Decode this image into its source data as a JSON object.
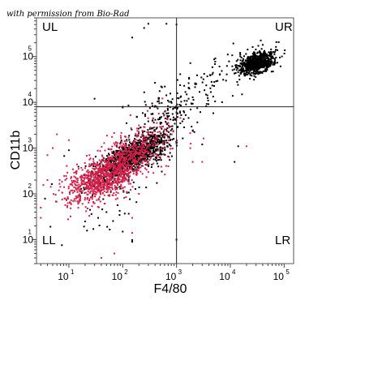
{
  "credit": "with permission from Bio-Rad",
  "chart_data": {
    "type": "scatter",
    "title": "",
    "xlabel": "F4/80",
    "ylabel": "CD11b",
    "x_scale": "log",
    "y_scale": "log",
    "xlim": [
      2.5,
      150000
    ],
    "ylim": [
      3,
      700000
    ],
    "x_ticks": [
      {
        "base": "10",
        "exp": "1",
        "value": 10
      },
      {
        "base": "10",
        "exp": "2",
        "value": 100
      },
      {
        "base": "10",
        "exp": "3",
        "value": 1000
      },
      {
        "base": "10",
        "exp": "4",
        "value": 10000
      },
      {
        "base": "10",
        "exp": "5",
        "value": 100000
      }
    ],
    "y_ticks": [
      {
        "base": "10",
        "exp": "1",
        "value": 10
      },
      {
        "base": "10",
        "exp": "2",
        "value": 100
      },
      {
        "base": "10",
        "exp": "3",
        "value": 1000
      },
      {
        "base": "10",
        "exp": "4",
        "value": 10000
      },
      {
        "base": "10",
        "exp": "5",
        "value": 100000
      }
    ],
    "gate": {
      "x": 1000,
      "y": 8000
    },
    "quadrant_labels": [
      "UL",
      "UR",
      "LL",
      "LR"
    ],
    "grid": false,
    "series": [
      {
        "color": "#000000",
        "clusters": [
          {
            "n": 700,
            "cx": 30000,
            "cy": 70000,
            "sx": 0.17,
            "sy": 0.13,
            "rho": 0.45
          },
          {
            "n": 1100,
            "cx": 160,
            "cy": 700,
            "sx": 0.33,
            "sy": 0.28,
            "rho": 0.75
          },
          {
            "n": 160,
            "cx": 700,
            "cy": 7000,
            "sx": 0.35,
            "sy": 0.35,
            "rho": 0.5
          },
          {
            "n": 60,
            "cx": 5000,
            "cy": 30000,
            "sx": 0.45,
            "sy": 0.35,
            "rho": 0.6
          },
          {
            "n": 50,
            "cx": 60,
            "cy": 80,
            "sx": 0.5,
            "sy": 0.5,
            "rho": 0.2
          }
        ],
        "points": [
          [
            300,
            520000
          ],
          [
            650,
            520000
          ],
          [
            250,
            420000
          ],
          [
            150,
            260000
          ],
          [
            1000,
            500000
          ],
          [
            30,
            12000
          ],
          [
            100,
            8000
          ],
          [
            50,
            40
          ],
          [
            20,
            25
          ],
          [
            150,
            9
          ],
          [
            100,
            15
          ],
          [
            35,
            30
          ],
          [
            1000,
            10
          ],
          [
            3000,
            1200
          ],
          [
            14000,
            1100
          ],
          [
            12000,
            500
          ],
          [
            10,
            900
          ],
          [
            60,
            110
          ],
          [
            500,
            900
          ]
        ]
      },
      {
        "color": "#d6204b",
        "clusters": [
          {
            "n": 800,
            "cx": 40,
            "cy": 220,
            "sx": 0.35,
            "sy": 0.28,
            "rho": 0.55
          },
          {
            "n": 320,
            "cx": 120,
            "cy": 500,
            "sx": 0.3,
            "sy": 0.28,
            "rho": 0.5
          },
          {
            "n": 120,
            "cx": 300,
            "cy": 1500,
            "sx": 0.3,
            "sy": 0.3,
            "rho": 0.5
          }
        ],
        "points": [
          [
            70,
            5
          ],
          [
            40,
            4
          ],
          [
            150,
            14
          ],
          [
            200,
            100
          ],
          [
            300,
            300
          ],
          [
            150,
            30
          ],
          [
            2000,
            500
          ],
          [
            3000,
            500
          ],
          [
            20000,
            1100
          ],
          [
            1800,
            1000
          ],
          [
            10,
            1500
          ],
          [
            6,
            2000
          ],
          [
            3,
            50
          ],
          [
            3,
            30
          ],
          [
            4,
            200
          ],
          [
            4,
            700
          ],
          [
            5,
            1000
          ],
          [
            80,
            80
          ],
          [
            250,
            1800
          ],
          [
            30,
            100
          ],
          [
            12,
            70
          ]
        ]
      }
    ]
  }
}
